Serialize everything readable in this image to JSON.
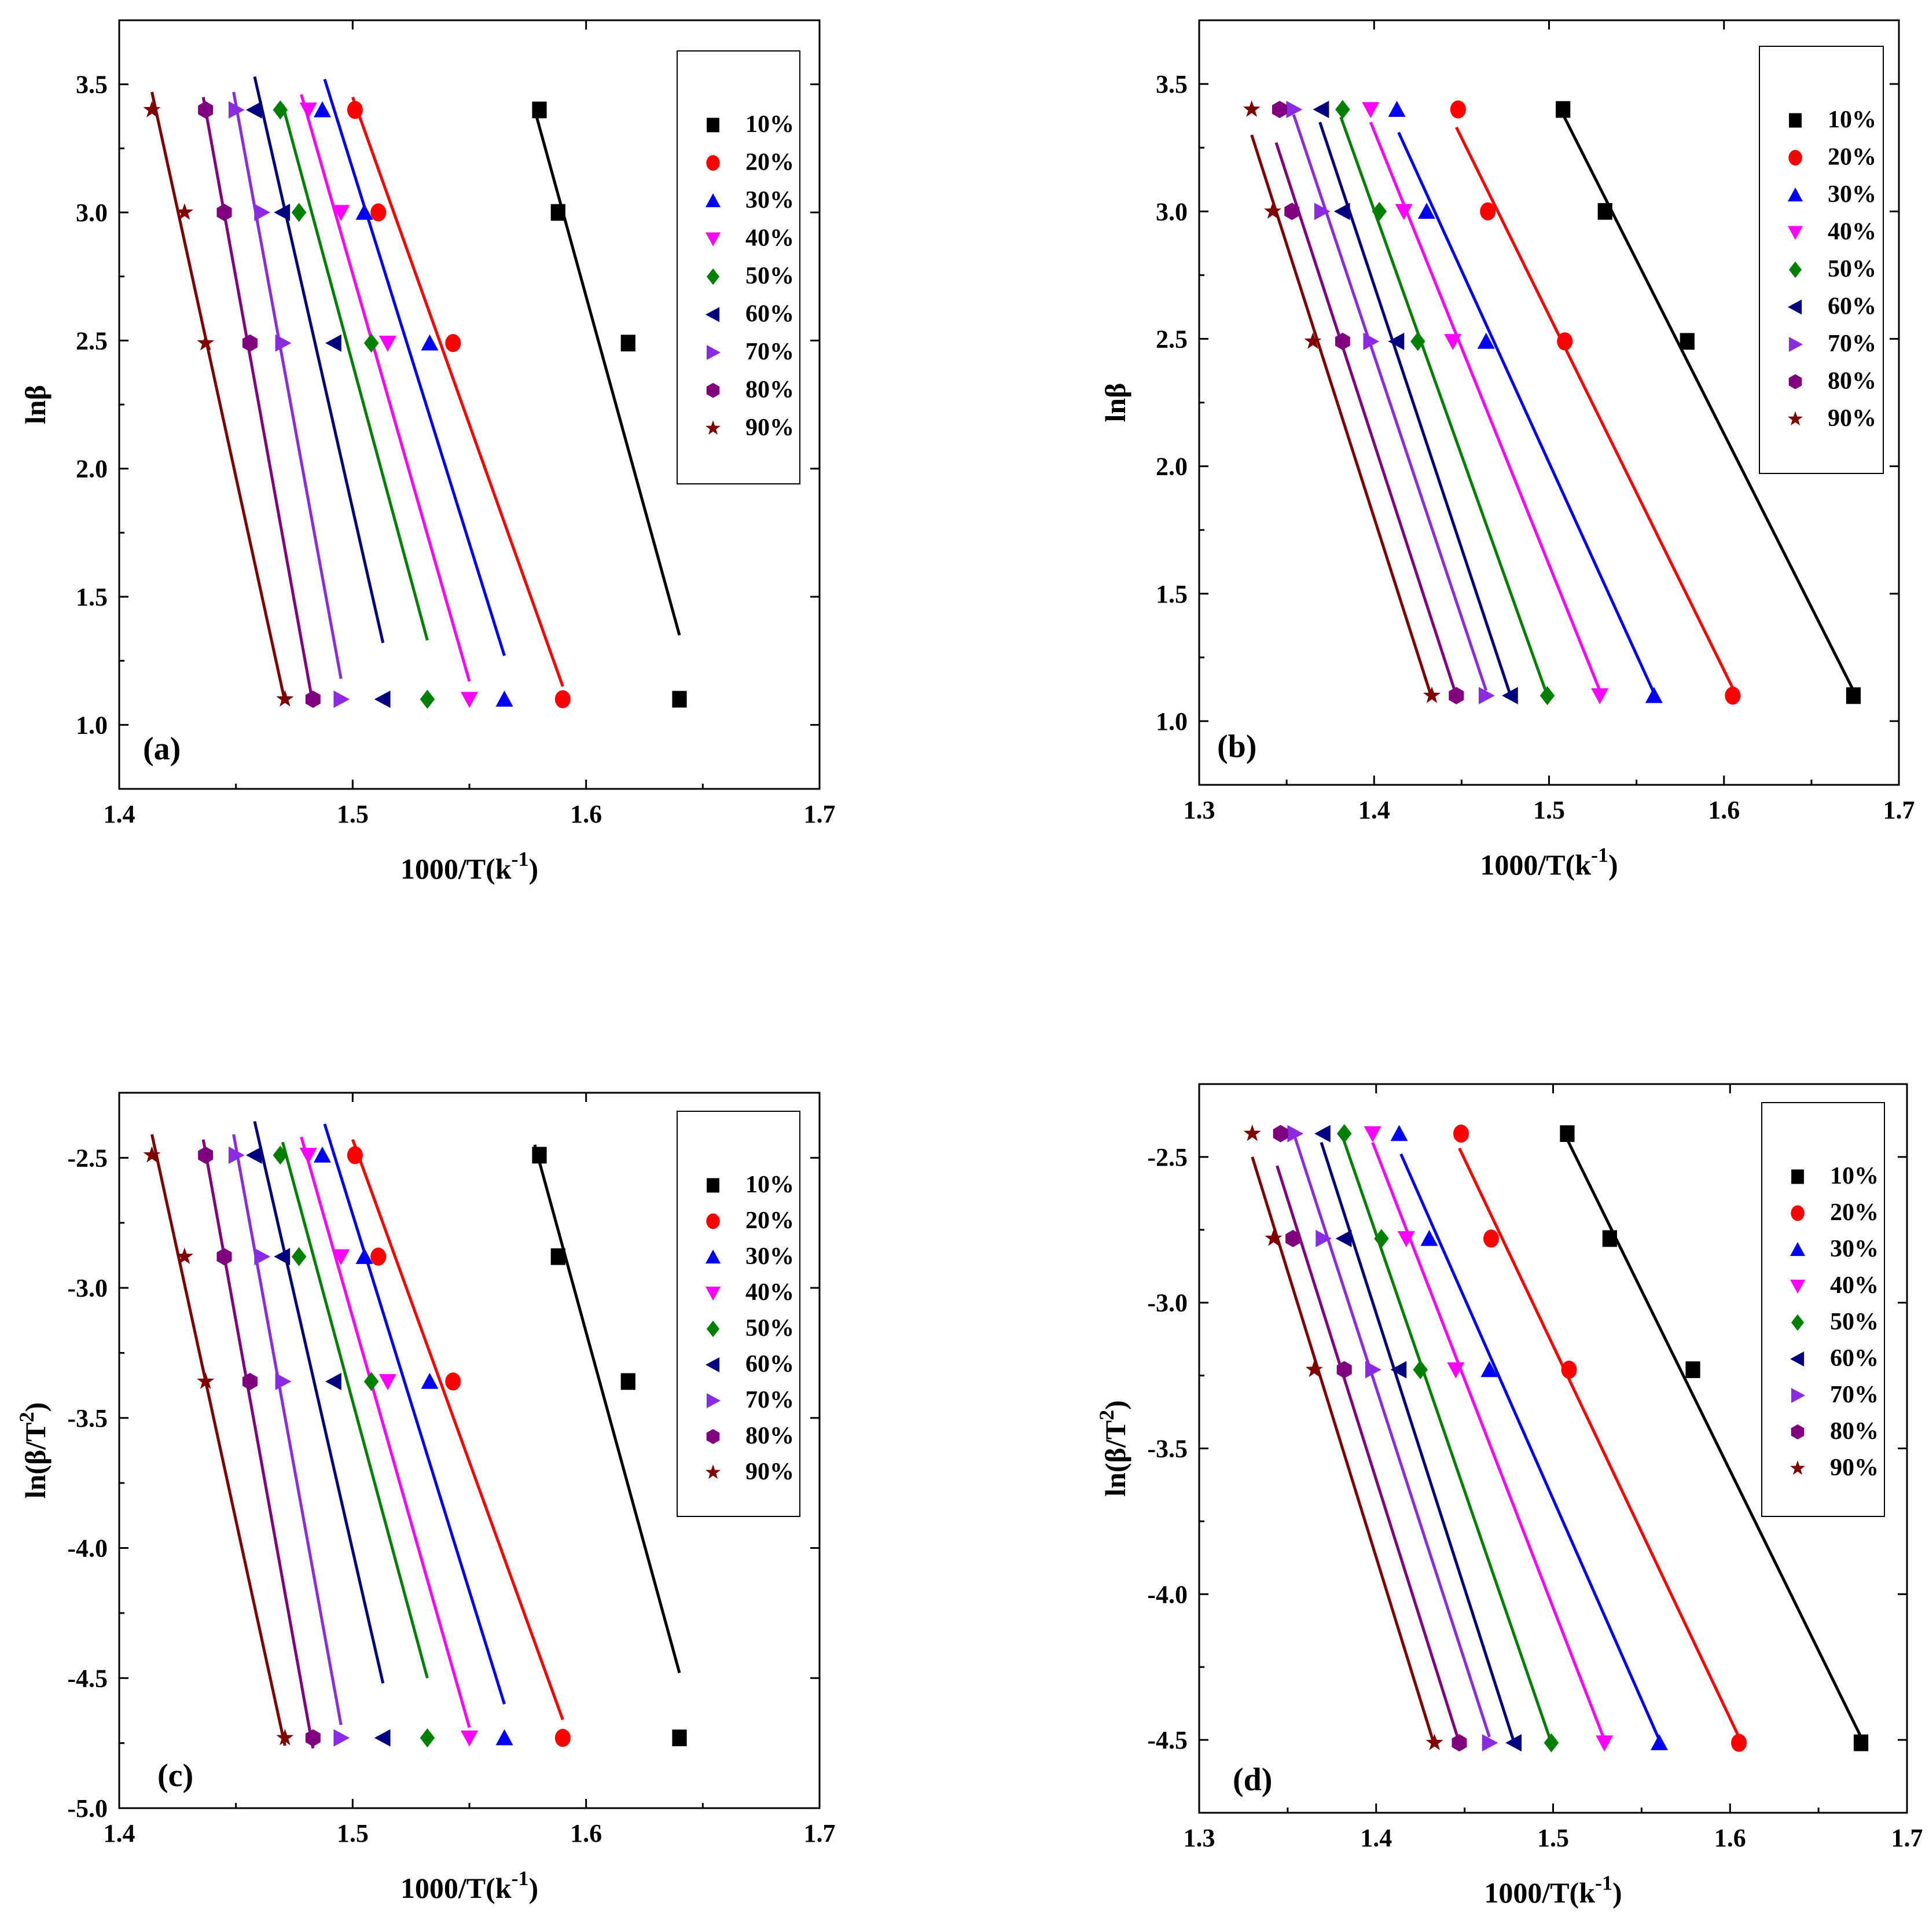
{
  "legend": {
    "series": [
      {
        "name": "10%",
        "color": "#000000",
        "marker": "square"
      },
      {
        "name": "20%",
        "color": "#ff0000",
        "marker": "circle"
      },
      {
        "name": "30%",
        "color": "#0000ff",
        "marker": "triangle-up"
      },
      {
        "name": "40%",
        "color": "#ff00ff",
        "marker": "triangle-down"
      },
      {
        "name": "50%",
        "color": "#008000",
        "marker": "diamond"
      },
      {
        "name": "60%",
        "color": "#000080",
        "marker": "triangle-left"
      },
      {
        "name": "70%",
        "color": "#8a2be2",
        "marker": "triangle-right"
      },
      {
        "name": "80%",
        "color": "#800080",
        "marker": "hexagon"
      },
      {
        "name": "90%",
        "color": "#800000",
        "marker": "star"
      }
    ]
  },
  "chart_data": [
    {
      "type": "scatter",
      "panel_label": "(a)",
      "xlabel": "1000/T(k",
      "xlabel_sup": "-1",
      "xlabel_end": ")",
      "ylabel": "lnβ",
      "xlim": [
        1.4,
        1.7
      ],
      "ylim": [
        0.75,
        3.75
      ],
      "xticks": [
        "1.4",
        "1.5",
        "1.6",
        "1.7"
      ],
      "yticks": [
        "1.0",
        "1.5",
        "2.0",
        "2.5",
        "3.0",
        "3.5"
      ],
      "y": [
        3.4,
        3.0,
        2.49,
        1.1
      ],
      "series": [
        {
          "name": "10%",
          "x": [
            1.58,
            1.588,
            1.618,
            1.64
          ],
          "fit_x": [
            1.578,
            1.64
          ],
          "fit_y": [
            3.4,
            1.35
          ]
        },
        {
          "name": "20%",
          "x": [
            1.501,
            1.511,
            1.543,
            1.59
          ],
          "fit_x": [
            1.5,
            1.59
          ],
          "fit_y": [
            3.45,
            1.15
          ]
        },
        {
          "name": "30%",
          "x": [
            1.487,
            1.505,
            1.533,
            1.565
          ],
          "fit_x": [
            1.488,
            1.565
          ],
          "fit_y": [
            3.52,
            1.27
          ]
        },
        {
          "name": "40%",
          "x": [
            1.481,
            1.495,
            1.515,
            1.55
          ],
          "fit_x": [
            1.478,
            1.55
          ],
          "fit_y": [
            3.46,
            1.17
          ]
        },
        {
          "name": "50%",
          "x": [
            1.469,
            1.477,
            1.508,
            1.532
          ],
          "fit_x": [
            1.47,
            1.532
          ],
          "fit_y": [
            3.42,
            1.33
          ]
        },
        {
          "name": "60%",
          "x": [
            1.458,
            1.47,
            1.492,
            1.513
          ],
          "fit_x": [
            1.458,
            1.513
          ],
          "fit_y": [
            3.53,
            1.32
          ]
        },
        {
          "name": "70%",
          "x": [
            1.45,
            1.461,
            1.47,
            1.495
          ],
          "fit_x": [
            1.449,
            1.495
          ],
          "fit_y": [
            3.47,
            1.18
          ]
        },
        {
          "name": "80%",
          "x": [
            1.437,
            1.445,
            1.456,
            1.483
          ],
          "fit_x": [
            1.436,
            1.483
          ],
          "fit_y": [
            3.45,
            1.08
          ]
        },
        {
          "name": "90%",
          "x": [
            1.414,
            1.428,
            1.437,
            1.471
          ],
          "fit_x": [
            1.414,
            1.471
          ],
          "fit_y": [
            3.47,
            1.09
          ]
        }
      ]
    },
    {
      "type": "scatter",
      "panel_label": "(b)",
      "xlabel": "1000/T(k",
      "xlabel_sup": "-1",
      "xlabel_end": ")",
      "ylabel": "lnβ",
      "xlim": [
        1.3,
        1.7
      ],
      "ylim": [
        0.75,
        3.75
      ],
      "xticks": [
        "1.3",
        "1.4",
        "1.5",
        "1.6",
        "1.7"
      ],
      "yticks": [
        "1.0",
        "1.5",
        "2.0",
        "2.5",
        "3.0",
        "3.5"
      ],
      "y": [
        3.4,
        3.0,
        2.49,
        1.1
      ],
      "series": [
        {
          "name": "10%",
          "x": [
            1.508,
            1.532,
            1.579,
            1.674
          ],
          "fit_x": [
            1.508,
            1.674
          ],
          "fit_y": [
            3.38,
            1.12
          ]
        },
        {
          "name": "20%",
          "x": [
            1.448,
            1.465,
            1.509,
            1.605
          ],
          "fit_x": [
            1.447,
            1.605
          ],
          "fit_y": [
            3.33,
            1.13
          ]
        },
        {
          "name": "30%",
          "x": [
            1.413,
            1.43,
            1.464,
            1.56
          ],
          "fit_x": [
            1.414,
            1.56
          ],
          "fit_y": [
            3.31,
            1.11
          ]
        },
        {
          "name": "40%",
          "x": [
            1.398,
            1.417,
            1.445,
            1.529
          ],
          "fit_x": [
            1.398,
            1.529
          ],
          "fit_y": [
            3.35,
            1.12
          ]
        },
        {
          "name": "50%",
          "x": [
            1.382,
            1.403,
            1.425,
            1.499
          ],
          "fit_x": [
            1.381,
            1.499
          ],
          "fit_y": [
            3.37,
            1.1
          ]
        },
        {
          "name": "60%",
          "x": [
            1.37,
            1.382,
            1.413,
            1.478
          ],
          "fit_x": [
            1.369,
            1.478
          ],
          "fit_y": [
            3.35,
            1.1
          ]
        },
        {
          "name": "70%",
          "x": [
            1.354,
            1.37,
            1.398,
            1.464
          ],
          "fit_x": [
            1.354,
            1.464
          ],
          "fit_y": [
            3.38,
            1.12
          ]
        },
        {
          "name": "80%",
          "x": [
            1.346,
            1.353,
            1.382,
            1.447
          ],
          "fit_x": [
            1.344,
            1.447
          ],
          "fit_y": [
            3.27,
            1.1
          ]
        },
        {
          "name": "90%",
          "x": [
            1.33,
            1.342,
            1.365,
            1.433
          ],
          "fit_x": [
            1.33,
            1.433
          ],
          "fit_y": [
            3.3,
            1.09
          ]
        }
      ]
    },
    {
      "type": "scatter",
      "panel_label": "(c)",
      "xlabel": "1000/T(k",
      "xlabel_sup": "-1",
      "xlabel_end": ")",
      "ylabel": "ln(β/T",
      "ylabel_sup": "2",
      "ylabel_end": ")",
      "xlim": [
        1.4,
        1.7
      ],
      "ylim": [
        -5.0,
        -2.25
      ],
      "xticks": [
        "1.4",
        "1.5",
        "1.6",
        "1.7"
      ],
      "yticks": [
        "-5.0",
        "-4.5",
        "-4.0",
        "-3.5",
        "-3.0",
        "-2.5"
      ],
      "y": [
        -2.49,
        -2.88,
        -3.36,
        -4.73
      ],
      "series": [
        {
          "name": "10%",
          "x": [
            1.58,
            1.588,
            1.618,
            1.64
          ],
          "fit_x": [
            1.578,
            1.64
          ],
          "fit_y": [
            -2.45,
            -4.48
          ]
        },
        {
          "name": "20%",
          "x": [
            1.501,
            1.511,
            1.543,
            1.59
          ],
          "fit_x": [
            1.5,
            1.59
          ],
          "fit_y": [
            -2.43,
            -4.66
          ]
        },
        {
          "name": "30%",
          "x": [
            1.487,
            1.505,
            1.533,
            1.565
          ],
          "fit_x": [
            1.488,
            1.565
          ],
          "fit_y": [
            -2.37,
            -4.6
          ]
        },
        {
          "name": "40%",
          "x": [
            1.481,
            1.495,
            1.515,
            1.55
          ],
          "fit_x": [
            1.478,
            1.55
          ],
          "fit_y": [
            -2.42,
            -4.69
          ]
        },
        {
          "name": "50%",
          "x": [
            1.469,
            1.477,
            1.508,
            1.532
          ],
          "fit_x": [
            1.47,
            1.532
          ],
          "fit_y": [
            -2.44,
            -4.5
          ]
        },
        {
          "name": "60%",
          "x": [
            1.458,
            1.47,
            1.492,
            1.513
          ],
          "fit_x": [
            1.458,
            1.513
          ],
          "fit_y": [
            -2.36,
            -4.52
          ]
        },
        {
          "name": "70%",
          "x": [
            1.45,
            1.461,
            1.47,
            1.495
          ],
          "fit_x": [
            1.449,
            1.495
          ],
          "fit_y": [
            -2.41,
            -4.68
          ]
        },
        {
          "name": "80%",
          "x": [
            1.437,
            1.445,
            1.456,
            1.483
          ],
          "fit_x": [
            1.436,
            1.483
          ],
          "fit_y": [
            -2.43,
            -4.77
          ]
        },
        {
          "name": "90%",
          "x": [
            1.414,
            1.428,
            1.437,
            1.471
          ],
          "fit_x": [
            1.414,
            1.471
          ],
          "fit_y": [
            -2.41,
            -4.76
          ]
        }
      ]
    },
    {
      "type": "scatter",
      "panel_label": "(d)",
      "xlabel": "1000/T(k",
      "xlabel_sup": "-1",
      "xlabel_end": ")",
      "ylabel": "ln(β/T",
      "ylabel_sup": "2",
      "ylabel_end": ")",
      "xlim": [
        1.3,
        1.7
      ],
      "ylim": [
        -4.75,
        -2.25
      ],
      "xticks": [
        "1.3",
        "1.4",
        "1.5",
        "1.6",
        "1.7"
      ],
      "yticks": [
        "-4.5",
        "-4.0",
        "-3.5",
        "-3.0",
        "-2.5"
      ],
      "y": [
        -2.42,
        -2.78,
        -3.23,
        -4.51
      ],
      "series": [
        {
          "name": "10%",
          "x": [
            1.508,
            1.532,
            1.579,
            1.674
          ],
          "fit_x": [
            1.508,
            1.674
          ],
          "fit_y": [
            -2.44,
            -4.49
          ]
        },
        {
          "name": "20%",
          "x": [
            1.448,
            1.465,
            1.509,
            1.605
          ],
          "fit_x": [
            1.447,
            1.605
          ],
          "fit_y": [
            -2.47,
            -4.49
          ]
        },
        {
          "name": "30%",
          "x": [
            1.413,
            1.43,
            1.464,
            1.56
          ],
          "fit_x": [
            1.414,
            1.56
          ],
          "fit_y": [
            -2.49,
            -4.5
          ]
        },
        {
          "name": "40%",
          "x": [
            1.398,
            1.417,
            1.445,
            1.529
          ],
          "fit_x": [
            1.398,
            1.529
          ],
          "fit_y": [
            -2.45,
            -4.5
          ]
        },
        {
          "name": "50%",
          "x": [
            1.382,
            1.403,
            1.425,
            1.499
          ],
          "fit_x": [
            1.381,
            1.499
          ],
          "fit_y": [
            -2.43,
            -4.51
          ]
        },
        {
          "name": "60%",
          "x": [
            1.37,
            1.382,
            1.413,
            1.478
          ],
          "fit_x": [
            1.369,
            1.478
          ],
          "fit_y": [
            -2.45,
            -4.51
          ]
        },
        {
          "name": "70%",
          "x": [
            1.354,
            1.37,
            1.398,
            1.464
          ],
          "fit_x": [
            1.354,
            1.464
          ],
          "fit_y": [
            -2.43,
            -4.49
          ]
        },
        {
          "name": "80%",
          "x": [
            1.346,
            1.353,
            1.382,
            1.447
          ],
          "fit_x": [
            1.344,
            1.447
          ],
          "fit_y": [
            -2.53,
            -4.51
          ]
        },
        {
          "name": "90%",
          "x": [
            1.33,
            1.342,
            1.365,
            1.433
          ],
          "fit_x": [
            1.33,
            1.433
          ],
          "fit_y": [
            -2.5,
            -4.52
          ]
        }
      ]
    }
  ]
}
